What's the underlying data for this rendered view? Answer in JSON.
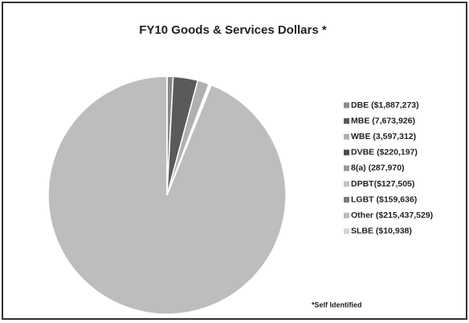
{
  "chart_data": {
    "type": "pie",
    "title": "FY10 Goods & Services Dollars *",
    "categories": [
      "DBE ($1,887,273)",
      "MBE (7,673,926)",
      "WBE (3,597,312)",
      "DVBE ($220,197)",
      "8(a) (287,970)",
      "DPBT($127,505)",
      "LGBT ($159,636)",
      "Other ($215,437,529)",
      "SLBE ($10,938)"
    ],
    "values": [
      1887273,
      7673926,
      3597312,
      220197,
      287970,
      127505,
      159636,
      215437529,
      10938
    ],
    "colors": [
      "#8a8a8a",
      "#5a5a5a",
      "#b0b0b0",
      "#4a4a4a",
      "#9a9a9a",
      "#c4c4c4",
      "#7a7a7a",
      "#bdbdbd",
      "#d6d6d6"
    ],
    "annotation": "*Self Identified"
  }
}
